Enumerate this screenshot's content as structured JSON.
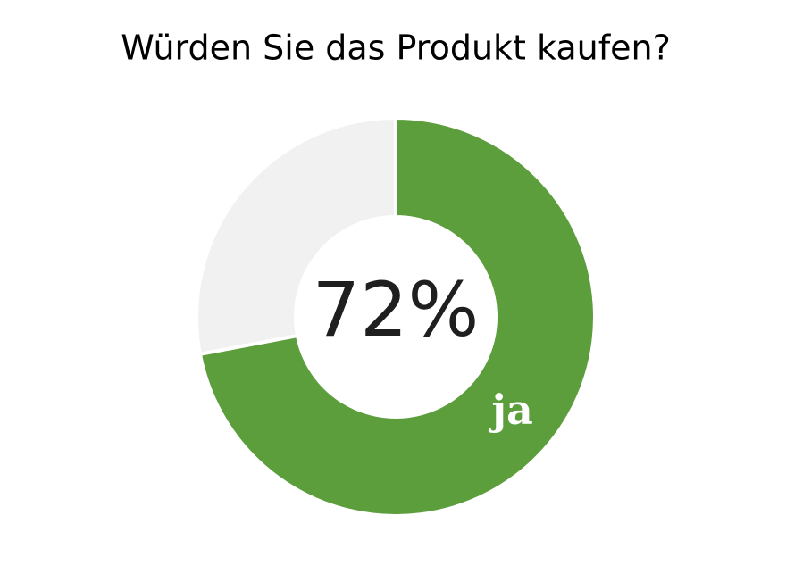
{
  "chart_data": {
    "type": "pie",
    "title": "Würden Sie das Produkt kaufen?",
    "categories": [
      "ja",
      null
    ],
    "values": [
      72,
      28
    ],
    "value_labels": [
      "72%",
      null
    ],
    "colors": [
      "#5c9d3c",
      "#f1f1f1"
    ],
    "donut": true
  }
}
